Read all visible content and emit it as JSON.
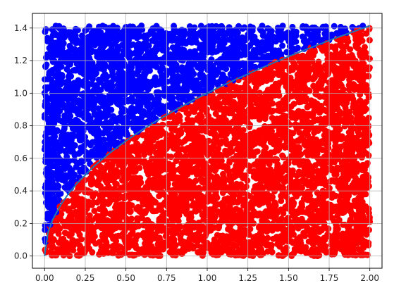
{
  "chart_data": {
    "type": "scatter",
    "title": "",
    "xlabel": "",
    "ylabel": "",
    "xlim": [
      -0.075,
      2.075
    ],
    "ylim": [
      -0.075,
      1.49
    ],
    "grid": true,
    "x_ticks": [
      0.0,
      0.25,
      0.5,
      0.75,
      1.0,
      1.25,
      1.5,
      1.75,
      2.0
    ],
    "x_tick_labels": [
      "0.00",
      "0.25",
      "0.50",
      "0.75",
      "1.00",
      "1.25",
      "1.50",
      "1.75",
      "2.00"
    ],
    "y_ticks": [
      0.0,
      0.2,
      0.4,
      0.6,
      0.8,
      1.0,
      1.2,
      1.4
    ],
    "y_tick_labels": [
      "0.0",
      "0.2",
      "0.4",
      "0.6",
      "0.8",
      "1.0",
      "1.2",
      "1.4"
    ],
    "sample_region": {
      "x": [
        0,
        2
      ],
      "y": [
        0,
        1.4142
      ]
    },
    "boundary_curve": {
      "function": "y = sqrt(x)",
      "x": [
        0,
        0.02,
        0.05,
        0.1,
        0.15,
        0.2,
        0.3,
        0.4,
        0.5,
        0.6,
        0.7,
        0.8,
        0.9,
        1.0,
        1.1,
        1.2,
        1.3,
        1.4,
        1.5,
        1.6,
        1.7,
        1.8,
        1.9,
        2.0
      ],
      "y": [
        0,
        0.141,
        0.224,
        0.316,
        0.387,
        0.447,
        0.548,
        0.632,
        0.707,
        0.775,
        0.837,
        0.894,
        0.949,
        1.0,
        1.049,
        1.095,
        1.14,
        1.183,
        1.225,
        1.265,
        1.304,
        1.342,
        1.378,
        1.414
      ]
    },
    "series": [
      {
        "region": "above curve",
        "color": "#0000ff"
      },
      {
        "region": "below curve",
        "color": "#ff0000"
      }
    ],
    "curve_color": "#1f77b4"
  }
}
